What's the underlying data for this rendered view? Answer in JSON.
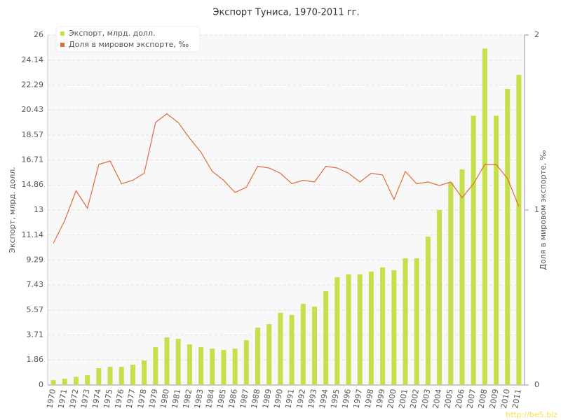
{
  "chart_data": {
    "type": "combo",
    "title": "Экспорт Туниса, 1970-2011 гг.",
    "y_label": "Экспорт, млрд. долл.",
    "y2_label": "Доля в мировом экспорте, ‰",
    "watermark": "http://be5.biz",
    "categories": [
      "1970",
      "1971",
      "1972",
      "1973",
      "1974",
      "1975",
      "1976",
      "1977",
      "1978",
      "1979",
      "1980",
      "1981",
      "1982",
      "1983",
      "1984",
      "1985",
      "1986",
      "1987",
      "1988",
      "1989",
      "1990",
      "1991",
      "1992",
      "1993",
      "1994",
      "1995",
      "1996",
      "1997",
      "1998",
      "1999",
      "2000",
      "2001",
      "2002",
      "2003",
      "2004",
      "2005",
      "2006",
      "2007",
      "2008",
      "2009",
      "2010",
      "2011"
    ],
    "series": [
      {
        "name": "Экспорт, млрд. долл.",
        "type": "bar",
        "color": "#c5e04a",
        "values": [
          0.36,
          0.47,
          0.62,
          0.73,
          1.25,
          1.35,
          1.35,
          1.51,
          1.82,
          2.81,
          3.54,
          3.43,
          3.02,
          2.81,
          2.7,
          2.6,
          2.7,
          3.33,
          4.26,
          4.52,
          5.36,
          5.2,
          6.03,
          5.82,
          6.97,
          8.0,
          8.22,
          8.22,
          8.42,
          8.74,
          8.53,
          9.41,
          9.41,
          11.02,
          13.0,
          15.03,
          16.02,
          20.0,
          24.99,
          20.0,
          22.0,
          23.04
        ]
      },
      {
        "name": "Доля в мировом экспорте, ‰",
        "type": "line",
        "axis": "y2",
        "color": "#e06b3f",
        "values": [
          0.81,
          0.94,
          1.11,
          1.01,
          1.26,
          1.28,
          1.15,
          1.17,
          1.21,
          1.5,
          1.55,
          1.5,
          1.41,
          1.33,
          1.22,
          1.17,
          1.1,
          1.13,
          1.25,
          1.24,
          1.21,
          1.15,
          1.17,
          1.16,
          1.25,
          1.24,
          1.21,
          1.16,
          1.21,
          1.2,
          1.06,
          1.22,
          1.15,
          1.16,
          1.14,
          1.16,
          1.07,
          1.15,
          1.26,
          1.26,
          1.18,
          1.02
        ]
      }
    ],
    "ylim": [
      0,
      26
    ],
    "yticks": [
      0,
      1.86,
      3.71,
      5.57,
      7.43,
      9.29,
      11.14,
      13,
      14.86,
      16.71,
      18.57,
      20.43,
      22.29,
      24.14,
      26
    ],
    "y2lim": [
      0,
      2
    ],
    "y2ticks": [
      0,
      1,
      2
    ],
    "grid": true,
    "legend": "top-left"
  }
}
